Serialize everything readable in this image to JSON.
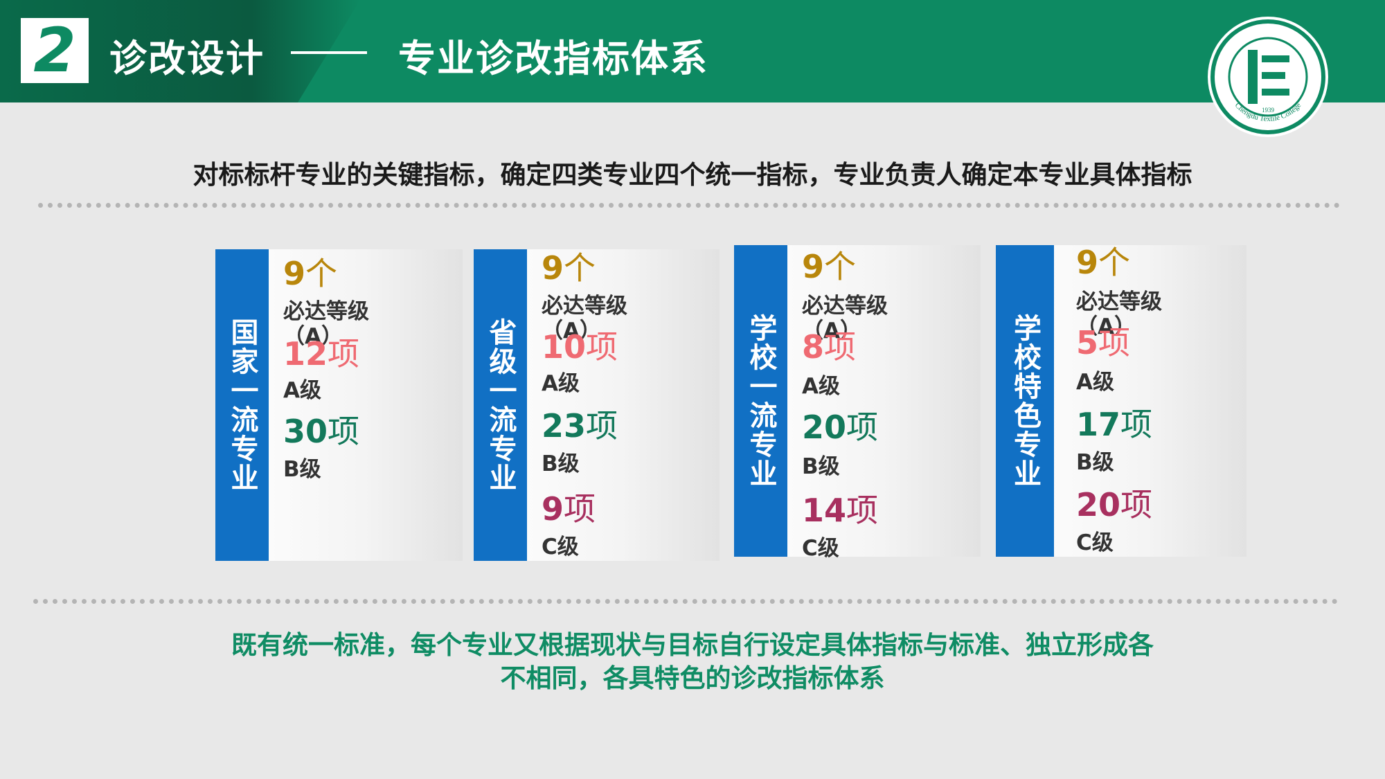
{
  "header": {
    "section_number": "2",
    "title_left": "诊改设计",
    "title_right": "专业诊改指标体系",
    "logo_text": "Chengdu Textile College",
    "logo_year": "1939",
    "color_primary": "#0d8a62"
  },
  "headline": "对标标杆专业的关键指标，确定四类专业四个统一指标，专业负责人确定本专业具体指标",
  "cards": [
    {
      "label": "国家一流专业",
      "a_count": "9",
      "a_unit": "个",
      "a_line1": "必达等级",
      "a_line2": "（A）",
      "levels": [
        {
          "value": "12",
          "unit": "项",
          "grade": "A级"
        },
        {
          "value": "30",
          "unit": "项",
          "grade": "B级"
        }
      ]
    },
    {
      "label": "省级一流专业",
      "a_count": "9",
      "a_unit": "个",
      "a_line1": "必达等级",
      "a_line2": "（A）",
      "levels": [
        {
          "value": "10",
          "unit": "项",
          "grade": "A级"
        },
        {
          "value": "23",
          "unit": "项",
          "grade": "B级"
        },
        {
          "value": "9",
          "unit": "项",
          "grade": "C级"
        }
      ]
    },
    {
      "label": "学校一流专业",
      "a_count": "9",
      "a_unit": "个",
      "a_line1": "必达等级",
      "a_line2": "（A）",
      "levels": [
        {
          "value": "8",
          "unit": "项",
          "grade": "A级"
        },
        {
          "value": "20",
          "unit": "项",
          "grade": "B级"
        },
        {
          "value": "14",
          "unit": "项",
          "grade": "C级"
        }
      ]
    },
    {
      "label": "学校特色专业",
      "a_count": "9",
      "a_unit": "个",
      "a_line1": "必达等级",
      "a_line2": "（A）",
      "levels": [
        {
          "value": "5",
          "unit": "项",
          "grade": "A级"
        },
        {
          "value": "17",
          "unit": "项",
          "grade": "B级"
        },
        {
          "value": "20",
          "unit": "项",
          "grade": "C级"
        }
      ]
    }
  ],
  "footer": {
    "line1": "既有统一标准，每个专业又根据现状与目标自行设定具体指标与标准、独立形成各",
    "line2": "不相同，各具特色的诊改指标体系"
  }
}
